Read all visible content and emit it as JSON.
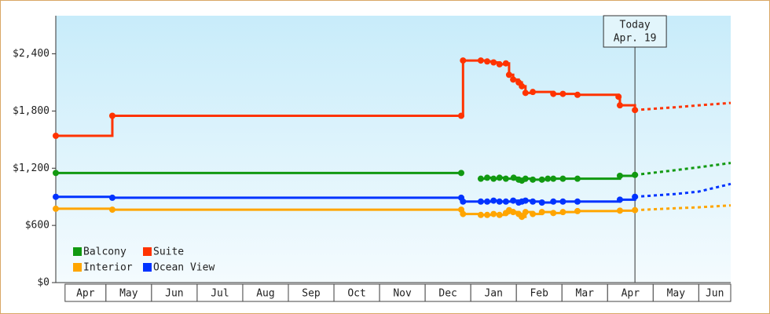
{
  "chart_data": {
    "type": "step-line",
    "categories": [
      "Apr",
      "May",
      "Jun",
      "Jul",
      "Aug",
      "Sep",
      "Oct",
      "Nov",
      "Dec",
      "Jan",
      "Feb",
      "Mar",
      "Apr",
      "May",
      "Jun"
    ],
    "xlim": [
      -0.1,
      14.7
    ],
    "ylim": [
      0,
      2800
    ],
    "yticks": [
      {
        "value": 0,
        "label": "$0"
      },
      {
        "value": 600,
        "label": "$600"
      },
      {
        "value": 1200,
        "label": "$1,200"
      },
      {
        "value": 1800,
        "label": "$1,800"
      },
      {
        "value": 2400,
        "label": "$2,400"
      }
    ],
    "legend": "bottom-left",
    "annotation": {
      "text": [
        "Today",
        "Apr. 19"
      ],
      "x": 12.6
    },
    "series": [
      {
        "name": "Balcony",
        "color": "#119911",
        "x": [
          -0.1,
          8.79,
          9.0,
          9.22,
          9.36,
          9.5,
          9.63,
          9.77,
          9.94,
          10.05,
          10.12,
          10.2,
          10.36,
          10.56,
          10.69,
          10.81,
          11.02,
          11.34,
          12.27,
          12.6
        ],
        "values": [
          1150,
          1150,
          null,
          1090,
          1100,
          1090,
          1100,
          1090,
          1100,
          1080,
          1070,
          1090,
          1080,
          1080,
          1090,
          1090,
          1090,
          1090,
          1120,
          1130
        ],
        "projection": {
          "x": [
            12.6,
            13.5,
            14.0,
            14.7
          ],
          "values": [
            1130,
            1180,
            1210,
            1255
          ]
        }
      },
      {
        "name": "Suite",
        "color": "#ff3300",
        "x": [
          -0.1,
          1.14,
          8.79,
          8.83,
          9.22,
          9.36,
          9.5,
          9.63,
          9.77,
          9.84,
          9.93,
          10.05,
          10.12,
          10.2,
          10.36,
          10.81,
          11.02,
          11.34,
          12.24,
          12.27,
          12.6
        ],
        "values": [
          1540,
          1750,
          1750,
          2330,
          2330,
          2320,
          2310,
          2290,
          2300,
          2180,
          2130,
          2100,
          2060,
          1990,
          2000,
          1980,
          1980,
          1970,
          1950,
          1860,
          1810
        ],
        "projection": {
          "x": [
            12.6,
            13.5,
            14.0,
            14.7
          ],
          "values": [
            1810,
            1840,
            1860,
            1885
          ]
        }
      },
      {
        "name": "Interior",
        "color": "#ffa500",
        "x": [
          -0.1,
          1.14,
          8.79,
          8.83,
          9.22,
          9.36,
          9.5,
          9.63,
          9.77,
          9.84,
          9.93,
          10.05,
          10.12,
          10.2,
          10.36,
          10.56,
          10.81,
          11.02,
          11.34,
          12.27,
          12.6
        ],
        "values": [
          775,
          765,
          765,
          720,
          710,
          710,
          720,
          710,
          730,
          760,
          740,
          720,
          690,
          740,
          720,
          740,
          730,
          740,
          750,
          755,
          760
        ],
        "projection": {
          "x": [
            12.6,
            13.5,
            14.0,
            14.7
          ],
          "values": [
            760,
            780,
            790,
            810
          ]
        }
      },
      {
        "name": "Ocean View",
        "color": "#0033ff",
        "x": [
          -0.1,
          1.14,
          8.79,
          8.83,
          9.22,
          9.36,
          9.5,
          9.63,
          9.77,
          9.93,
          10.05,
          10.12,
          10.2,
          10.36,
          10.56,
          10.81,
          11.02,
          11.34,
          12.27,
          12.6
        ],
        "values": [
          900,
          890,
          890,
          850,
          850,
          850,
          860,
          850,
          850,
          860,
          840,
          850,
          860,
          850,
          840,
          850,
          850,
          850,
          870,
          900
        ],
        "projection": {
          "x": [
            12.6,
            13.5,
            14.0,
            14.7
          ],
          "values": [
            900,
            930,
            955,
            1035
          ]
        }
      }
    ]
  }
}
